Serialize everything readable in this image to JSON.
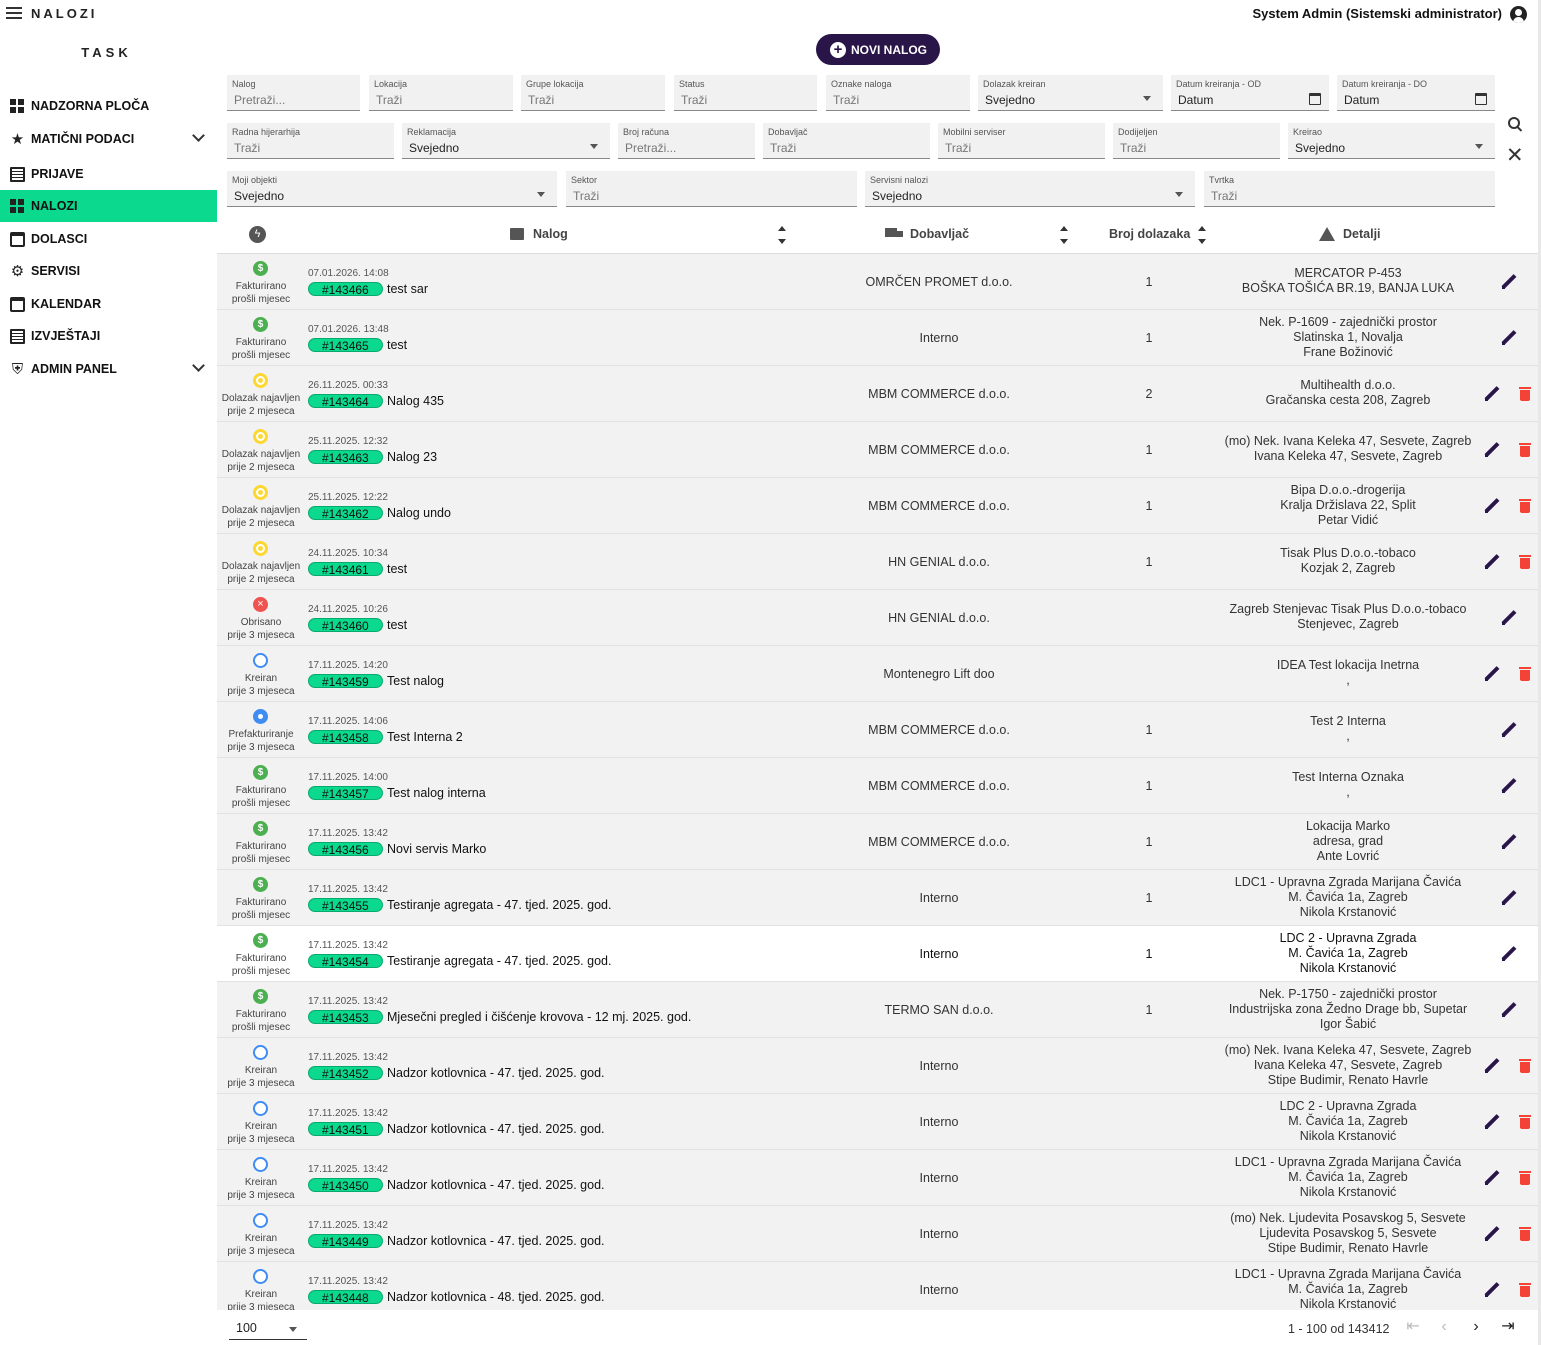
{
  "app_title": "NALOZI",
  "user": {
    "name": "System Admin (Sistemski administrator)"
  },
  "sidebar": {
    "brand": "TASK",
    "items": [
      {
        "label": "NADZORNA PLOČA",
        "icon": "dashboard-icon"
      },
      {
        "label": "MATIČNI PODACI",
        "icon": "star-icon",
        "expandable": true
      },
      {
        "label": "PRIJAVE",
        "icon": "list-icon"
      },
      {
        "label": "NALOZI",
        "icon": "orders-icon",
        "active": true
      },
      {
        "label": "DOLASCI",
        "icon": "calendar-icon"
      },
      {
        "label": "SERVISI",
        "icon": "gear-icon"
      },
      {
        "label": "KALENDAR",
        "icon": "calendar-icon"
      },
      {
        "label": "IZVJEŠTAJI",
        "icon": "report-icon"
      },
      {
        "label": "ADMIN PANEL",
        "icon": "shield-icon",
        "expandable": true
      }
    ]
  },
  "new_order_label": "NOVI NALOG",
  "filters": {
    "row1": [
      {
        "label": "Nalog",
        "value": "Pretraži..."
      },
      {
        "label": "Lokacija",
        "value": "Traži"
      },
      {
        "label": "Grupe lokacija",
        "value": "Traži"
      },
      {
        "label": "Status",
        "value": "Traži"
      },
      {
        "label": "Oznake naloga",
        "value": "Traži"
      },
      {
        "label": "Dolazak kreiran",
        "value": "Svejedno"
      },
      {
        "label": "Datum kreiranja - OD",
        "value": "Datum"
      },
      {
        "label": "Datum kreiranja - DO",
        "value": "Datum"
      }
    ],
    "row2": [
      {
        "label": "Radna hijerarhija",
        "value": "Traži"
      },
      {
        "label": "Reklamacija",
        "value": "Svejedno"
      },
      {
        "label": "Broj računa",
        "value": "Pretraži..."
      },
      {
        "label": "Dobavljač",
        "value": "Traži"
      },
      {
        "label": "Mobilni serviser",
        "value": "Traži"
      },
      {
        "label": "Dodijeljen",
        "value": "Traži"
      },
      {
        "label": "Kreirao",
        "value": "Svejedno"
      }
    ],
    "row3": [
      {
        "label": "Moji objekti",
        "value": "Svejedno"
      },
      {
        "label": "Sektor",
        "value": "Traži"
      },
      {
        "label": "Servisni nalozi",
        "value": "Svejedno"
      },
      {
        "label": "Tvrtka",
        "value": "Traži"
      }
    ]
  },
  "columns": {
    "order": "Nalog",
    "supplier": "Dobavljač",
    "arrivals": "Broj dolazaka",
    "details": "Detalji"
  },
  "rows": [
    {
      "status": "fakt",
      "status_label": "Fakturirano",
      "status_time": "prošli mjesec",
      "date": "07.01.2026. 14:08",
      "id": "#143466",
      "title": "test sar",
      "supplier": "OMRČEN PROMET d.o.o.",
      "arrivals": "1",
      "details": [
        "MERCATOR P-453",
        "BOŠKA TOŠIĆA BR.19, BANJA LUKA"
      ],
      "deletable": false
    },
    {
      "status": "fakt",
      "status_label": "Fakturirano",
      "status_time": "prošli mjesec",
      "date": "07.01.2026. 13:48",
      "id": "#143465",
      "title": "test",
      "supplier": "Interno",
      "arrivals": "1",
      "details": [
        "Nek. P-1609 - zajednički prostor",
        "Slatinska 1, Novalja",
        "Frane Božinović"
      ],
      "deletable": false
    },
    {
      "status": "dol",
      "status_label": "Dolazak najavljen",
      "status_time": "prije 2 mjeseca",
      "date": "26.11.2025. 00:33",
      "id": "#143464",
      "title": "Nalog 435",
      "supplier": "MBM COMMERCE d.o.o.",
      "arrivals": "2",
      "details": [
        "Multihealth d.o.o.",
        "Gračanska cesta 208, Zagreb"
      ],
      "deletable": true
    },
    {
      "status": "dol",
      "status_label": "Dolazak najavljen",
      "status_time": "prije 2 mjeseca",
      "date": "25.11.2025. 12:32",
      "id": "#143463",
      "title": "Nalog 23",
      "supplier": "MBM COMMERCE d.o.o.",
      "arrivals": "1",
      "details": [
        "(mo) Nek. Ivana Keleka 47, Sesvete, Zagreb",
        "Ivana Keleka 47, Sesvete, Zagreb"
      ],
      "deletable": true
    },
    {
      "status": "dol",
      "status_label": "Dolazak najavljen",
      "status_time": "prije 2 mjeseca",
      "date": "25.11.2025. 12:22",
      "id": "#143462",
      "title": "Nalog undo",
      "supplier": "MBM COMMERCE d.o.o.",
      "arrivals": "1",
      "details": [
        "Bipa D.o.o.-drogerija",
        "Kralja Držislava 22, Split",
        "Petar Vidić"
      ],
      "deletable": true
    },
    {
      "status": "dol",
      "status_label": "Dolazak najavljen",
      "status_time": "prije 2 mjeseca",
      "date": "24.11.2025. 10:34",
      "id": "#143461",
      "title": "test",
      "supplier": "HN GENIAL d.o.o.",
      "arrivals": "1",
      "details": [
        "Tisak Plus D.o.o.-tobaco",
        "Kozjak 2, Zagreb"
      ],
      "deletable": true
    },
    {
      "status": "obr",
      "status_label": "Obrisano",
      "status_time": "prije 3 mjeseca",
      "date": "24.11.2025. 10:26",
      "id": "#143460",
      "title": "test",
      "supplier": "HN GENIAL d.o.o.",
      "arrivals": "",
      "details": [
        "Zagreb Stenjevac Tisak Plus D.o.o.-tobaco",
        "Stenjevec, Zagreb"
      ],
      "deletable": false
    },
    {
      "status": "kre",
      "status_label": "Kreiran",
      "status_time": "prije 3 mjeseca",
      "date": "17.11.2025. 14:20",
      "id": "#143459",
      "title": "Test nalog",
      "supplier": "Montenegro Lift doo",
      "arrivals": "",
      "details": [
        "IDEA Test lokacija Inetrna",
        ","
      ],
      "deletable": true
    },
    {
      "status": "pre",
      "status_label": "Prefakturiranje",
      "status_time": "prije 3 mjeseca",
      "date": "17.11.2025. 14:06",
      "id": "#143458",
      "title": "Test Interna 2",
      "supplier": "MBM COMMERCE d.o.o.",
      "arrivals": "1",
      "details": [
        "Test 2 Interna",
        ","
      ],
      "deletable": false
    },
    {
      "status": "fakt",
      "status_label": "Fakturirano",
      "status_time": "prošli mjesec",
      "date": "17.11.2025. 14:00",
      "id": "#143457",
      "title": "Test nalog interna",
      "supplier": "MBM COMMERCE d.o.o.",
      "arrivals": "1",
      "details": [
        "Test Interna Oznaka",
        ","
      ],
      "deletable": false
    },
    {
      "status": "fakt",
      "status_label": "Fakturirano",
      "status_time": "prošli mjesec",
      "date": "17.11.2025. 13:42",
      "id": "#143456",
      "title": "Novi servis Marko",
      "supplier": "MBM COMMERCE d.o.o.",
      "arrivals": "1",
      "details": [
        "Lokacija Marko",
        "adresa, grad",
        "Ante Lovrić"
      ],
      "deletable": false
    },
    {
      "status": "fakt",
      "status_label": "Fakturirano",
      "status_time": "prošli mjesec",
      "date": "17.11.2025. 13:42",
      "id": "#143455",
      "title": "Testiranje agregata - 47. tjed. 2025. god.",
      "supplier": "Interno",
      "arrivals": "1",
      "details": [
        "LDC1 - Upravna Zgrada Marijana Čavića",
        "M. Čavića 1a, Zagreb",
        "Nikola Krstanović"
      ],
      "deletable": false
    },
    {
      "status": "fakt",
      "status_label": "Fakturirano",
      "status_time": "prošli mjesec",
      "date": "17.11.2025. 13:42",
      "id": "#143454",
      "title": "Testiranje agregata - 47. tjed. 2025. god.",
      "supplier": "Interno",
      "arrivals": "1",
      "details": [
        "LDC 2 - Upravna Zgrada",
        "M. Čavića 1a, Zagreb",
        "Nikola Krstanović"
      ],
      "deletable": false,
      "highlight": true
    },
    {
      "status": "fakt",
      "status_label": "Fakturirano",
      "status_time": "prošli mjesec",
      "date": "17.11.2025. 13:42",
      "id": "#143453",
      "title": "Mjesečni pregled i čišćenje krovova - 12 mj. 2025. god.",
      "supplier": "TERMO SAN d.o.o.",
      "arrivals": "1",
      "details": [
        "Nek. P-1750 - zajednički prostor",
        "Industrijska zona Žedno Drage bb, Supetar",
        "Igor Šabić"
      ],
      "deletable": false
    },
    {
      "status": "kre",
      "status_label": "Kreiran",
      "status_time": "prije 3 mjeseca",
      "date": "17.11.2025. 13:42",
      "id": "#143452",
      "title": "Nadzor kotlovnica - 47. tjed. 2025. god.",
      "supplier": "Interno",
      "arrivals": "",
      "details": [
        "(mo) Nek. Ivana Keleka 47, Sesvete, Zagreb",
        "Ivana Keleka 47, Sesvete, Zagreb",
        "Stipe Budimir, Renato Havrle"
      ],
      "deletable": true
    },
    {
      "status": "kre",
      "status_label": "Kreiran",
      "status_time": "prije 3 mjeseca",
      "date": "17.11.2025. 13:42",
      "id": "#143451",
      "title": "Nadzor kotlovnica - 47. tjed. 2025. god.",
      "supplier": "Interno",
      "arrivals": "",
      "details": [
        "LDC 2 - Upravna Zgrada",
        "M. Čavića 1a, Zagreb",
        "Nikola Krstanović"
      ],
      "deletable": true
    },
    {
      "status": "kre",
      "status_label": "Kreiran",
      "status_time": "prije 3 mjeseca",
      "date": "17.11.2025. 13:42",
      "id": "#143450",
      "title": "Nadzor kotlovnica - 47. tjed. 2025. god.",
      "supplier": "Interno",
      "arrivals": "",
      "details": [
        "LDC1 - Upravna Zgrada Marijana Čavića",
        "M. Čavića 1a, Zagreb",
        "Nikola Krstanović"
      ],
      "deletable": true
    },
    {
      "status": "kre",
      "status_label": "Kreiran",
      "status_time": "prije 3 mjeseca",
      "date": "17.11.2025. 13:42",
      "id": "#143449",
      "title": "Nadzor kotlovnica - 47. tjed. 2025. god.",
      "supplier": "Interno",
      "arrivals": "",
      "details": [
        "(mo) Nek. Ljudevita Posavskog 5, Sesvete",
        "Ljudevita Posavskog 5, Sesvete",
        "Stipe Budimir, Renato Havrle"
      ],
      "deletable": true
    },
    {
      "status": "kre",
      "status_label": "Kreiran",
      "status_time": "prije 3 mjeseca",
      "date": "17.11.2025. 13:42",
      "id": "#143448",
      "title": "Nadzor kotlovnica - 48. tjed. 2025. god.",
      "supplier": "Interno",
      "arrivals": "",
      "details": [
        "LDC1 - Upravna Zgrada Marijana Čavića",
        "M. Čavića 1a, Zagreb",
        "Nikola Krstanović"
      ],
      "deletable": true
    }
  ],
  "pagination": {
    "page_size": "100",
    "range": "1 - 100 od 143412"
  },
  "colors": {
    "accent": "#0bd98e",
    "primary": "#2a1548",
    "danger": "#f44336"
  }
}
